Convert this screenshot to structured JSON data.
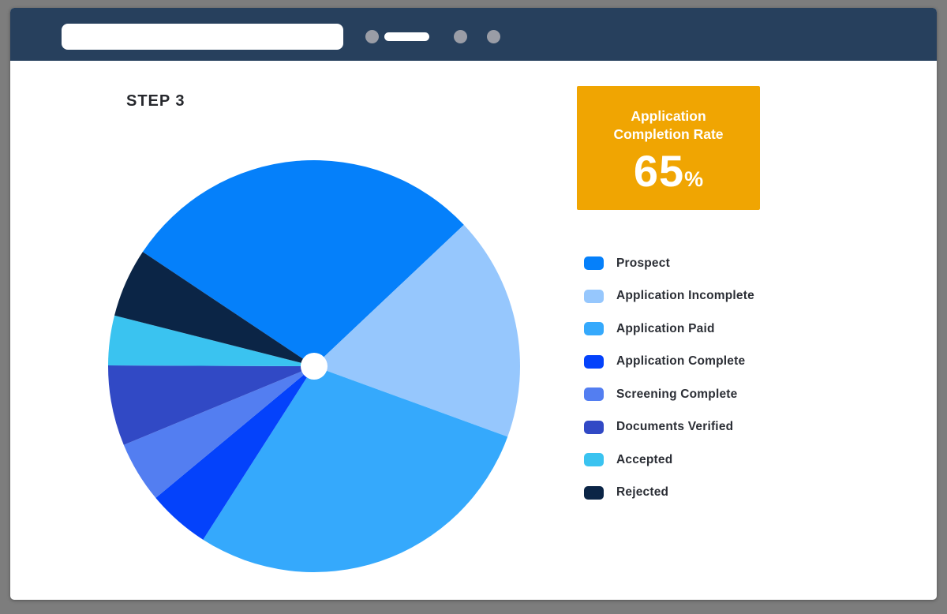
{
  "theme": {
    "outer_background": "#7D7D7D",
    "browser_bar": "#27405D",
    "toolbar_dot": "#9A9DA6",
    "window_background": "#FFFFFF",
    "title_color": "#26282D",
    "legend_label_color": "#2B2E35"
  },
  "browser": {
    "address_value": ""
  },
  "completion_card": {
    "lines": [
      "Application",
      "Completion Rate"
    ],
    "value": "65",
    "unit": "%",
    "bg_color": "#F0A502",
    "text_color": "#FFFFFF"
  },
  "chart_data": {
    "type": "pie",
    "title": "STEP 3",
    "start_angle_deg_clockwise_from_top": -56.3,
    "categories": [
      "Prospect",
      "Application Incomplete",
      "Application Paid",
      "Application Complete",
      "Screening Complete",
      "Documents Verified",
      "Accepted",
      "Rejected"
    ],
    "values_pct": [
      28.6,
      17.6,
      28.5,
      4.9,
      4.8,
      6.3,
      3.9,
      5.4
    ],
    "colors": [
      "#0580FA",
      "#96C7FD",
      "#35A9FC",
      "#0442FB",
      "#537EF1",
      "#3149C5",
      "#3AC3F0",
      "#0B2546"
    ],
    "legend_position": "right",
    "center_hole": {
      "radius_px": 17,
      "color": "#FFFFFF"
    },
    "radius_px": 261
  }
}
